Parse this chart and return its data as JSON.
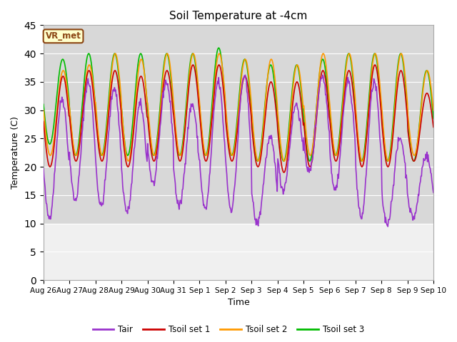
{
  "title": "Soil Temperature at -4cm",
  "xlabel": "Time",
  "ylabel": "Temperature (C)",
  "ylim": [
    0,
    45
  ],
  "yticks": [
    0,
    5,
    10,
    15,
    20,
    25,
    30,
    35,
    40,
    45
  ],
  "background_color": "#ffffff",
  "plot_bg_upper": "#d8d8d8",
  "plot_bg_lower": "#f0f0f0",
  "legend_labels": [
    "Tair",
    "Tsoil set 1",
    "Tsoil set 2",
    "Tsoil set 3"
  ],
  "line_colors": [
    "#9932CC",
    "#cc0000",
    "#ff9900",
    "#00bb00"
  ],
  "annotation_text": "VR_met",
  "annotation_bg": "#ffffcc",
  "annotation_border": "#8B4513",
  "grid_color": "#ffffff",
  "line_width": 1.2,
  "xtick_labels": [
    "Aug 26",
    "Aug 27",
    "Aug 28",
    "Aug 29",
    "Aug 30",
    "Aug 31",
    "Sep 1",
    "Sep 2",
    "Sep 3",
    "Sep 4",
    "Sep 5",
    "Sep 6",
    "Sep 7",
    "Sep 8",
    "Sep 9",
    "Sep 10"
  ],
  "tair_mins": [
    11,
    14,
    13,
    12,
    17,
    13,
    12.5,
    12.5,
    10,
    16,
    19,
    16,
    11,
    10,
    11
  ],
  "tair_maxs": [
    32,
    35,
    34,
    31,
    35,
    31,
    35,
    36,
    25,
    31,
    36,
    35,
    35,
    25,
    22
  ],
  "tsoil1_mins": [
    20,
    21,
    21,
    20,
    21,
    21,
    21,
    21,
    20,
    19,
    20,
    21,
    20,
    20,
    21
  ],
  "tsoil1_maxs": [
    36,
    37,
    37,
    36,
    37,
    38,
    38,
    36,
    35,
    35,
    37,
    37,
    38,
    37,
    33
  ],
  "tsoil2_mins": [
    22,
    22,
    22,
    21,
    22,
    22,
    22,
    22,
    21,
    21,
    22,
    22,
    21,
    21,
    22
  ],
  "tsoil2_maxs": [
    37,
    38,
    40,
    39,
    40,
    40,
    40,
    39,
    39,
    38,
    40,
    40,
    40,
    40,
    37
  ],
  "tsoil3_mins": [
    24,
    22,
    22,
    22,
    22,
    22,
    22,
    22,
    21,
    21,
    21,
    22,
    21,
    21,
    21
  ],
  "tsoil3_maxs": [
    39,
    40,
    40,
    40,
    40,
    40,
    41,
    39,
    38,
    38,
    39,
    40,
    40,
    40,
    37
  ]
}
